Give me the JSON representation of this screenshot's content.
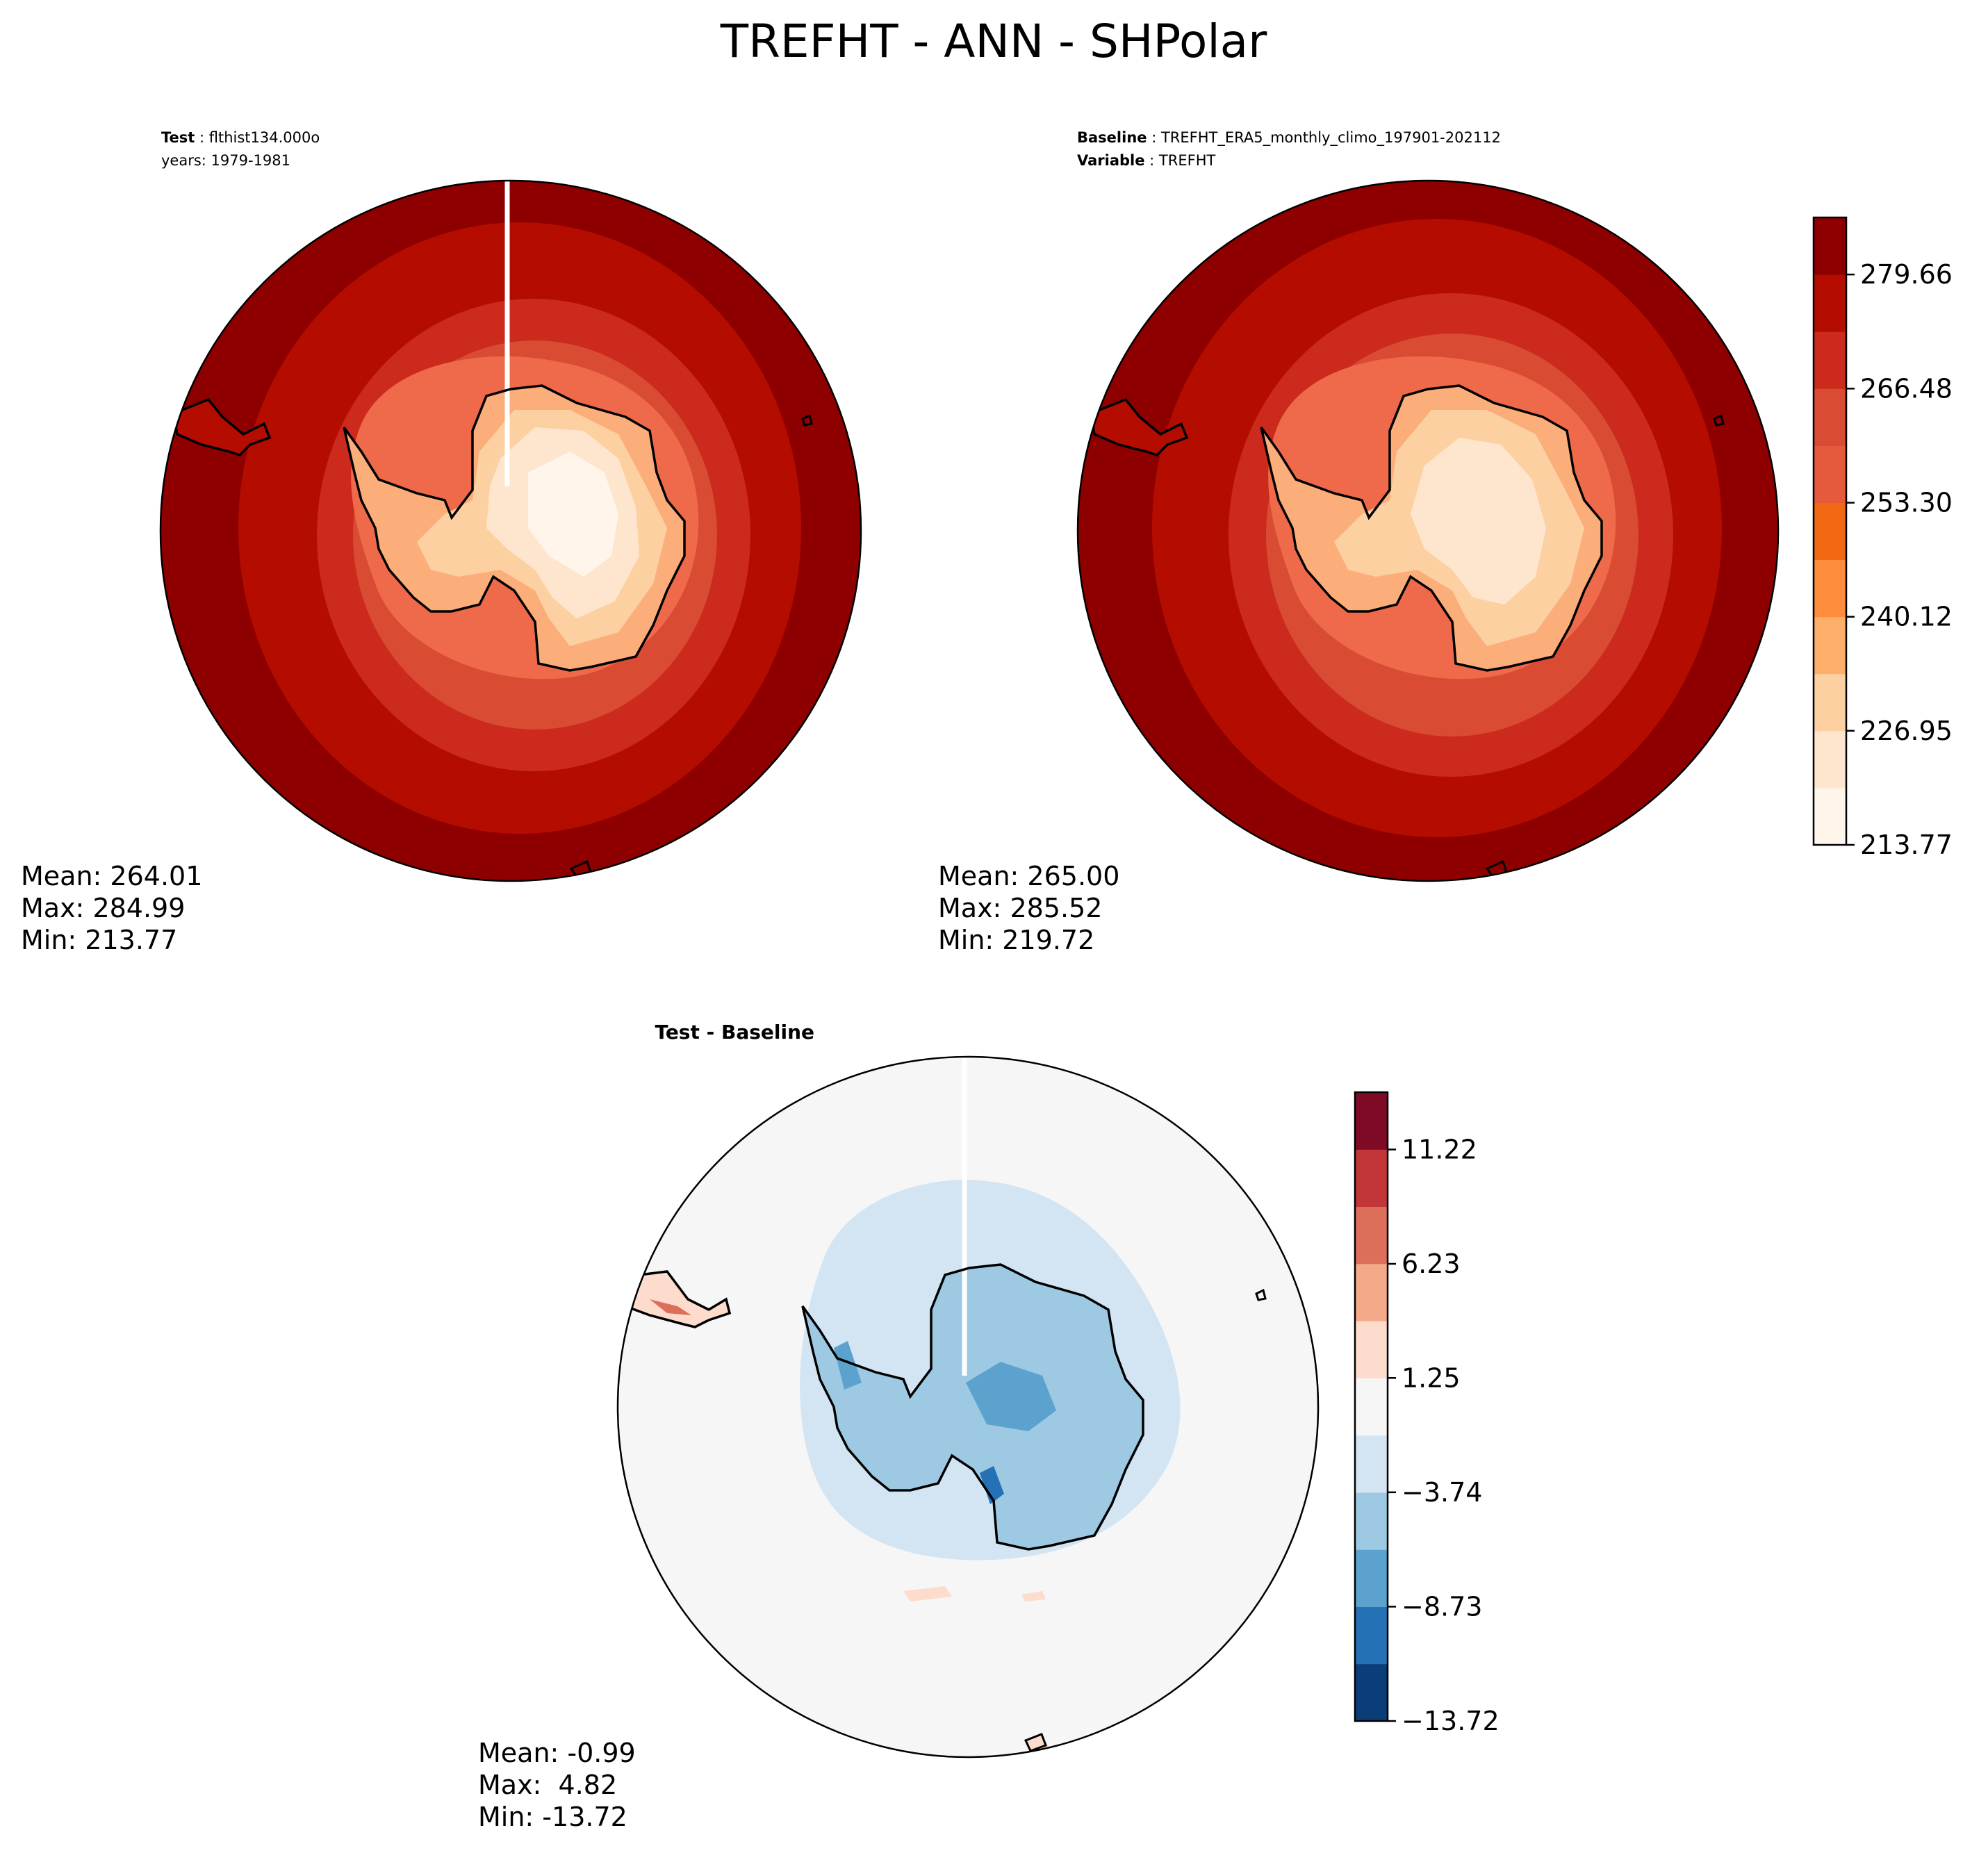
{
  "figure_title": "TREFHT - ANN - SHPolar",
  "chart_data": [
    {
      "type": "heatmap",
      "panel": "test",
      "header": [
        {
          "label": "Test",
          "value": "flthist134.000o"
        },
        {
          "label": "",
          "value": "years: 1979-1981"
        }
      ],
      "stats": [
        "Mean: 264.01",
        "Max: 284.99",
        "Min: 213.77"
      ],
      "level_range": [
        213.77,
        284.99
      ],
      "region": "Southern hemisphere polar stereographic"
    },
    {
      "type": "heatmap",
      "panel": "baseline",
      "header": [
        {
          "label": "Baseline",
          "value": "TREFHT_ERA5_monthly_climo_197901-202112"
        },
        {
          "label": "Variable",
          "value": "TREFHT"
        }
      ],
      "stats": [
        "Mean: 265.00",
        "Max: 285.52",
        "Min: 219.72"
      ],
      "level_range": [
        219.72,
        285.52
      ],
      "colorbar": {
        "ticks": [
          "279.66",
          "266.48",
          "253.30",
          "240.12",
          "226.95",
          "213.77"
        ],
        "tick_values": [
          279.66,
          266.48,
          253.3,
          240.12,
          226.95,
          213.77
        ],
        "range": [
          213.77,
          286.25
        ],
        "colors": [
          "#fff5eb",
          "#fee6ce",
          "#fdd0a2",
          "#fdae6b",
          "#fd8d3c",
          "#f16913",
          "#e65a3c",
          "#d94b32",
          "#cb2a1c",
          "#b50c00",
          "#8e0000"
        ]
      }
    },
    {
      "type": "heatmap",
      "panel": "difference",
      "header": [
        {
          "label": "Test - Baseline",
          "value": ""
        }
      ],
      "stats": [
        "Mean: -0.99",
        "Max:  4.82",
        "Min: -13.72"
      ],
      "level_range": [
        -13.72,
        4.82
      ],
      "colorbar": {
        "ticks": [
          "11.22",
          "6.23",
          "1.25",
          "−3.74",
          "−8.73",
          "−13.72"
        ],
        "tick_values": [
          11.22,
          6.23,
          1.25,
          -3.74,
          -8.73,
          -13.72
        ],
        "range": [
          -13.72,
          13.72
        ],
        "colors": [
          "#0b3e78",
          "#2571b6",
          "#5ca2cf",
          "#9dcae2",
          "#d3e5f2",
          "#f6f6f6",
          "#fddccd",
          "#f4a989",
          "#dd6e5a",
          "#c2363a",
          "#7f0a26"
        ]
      }
    }
  ],
  "colors": {
    "outer_ocean": "#8e0000",
    "continent_edge": "#000000",
    "diff_background": "#f6f6f6"
  }
}
